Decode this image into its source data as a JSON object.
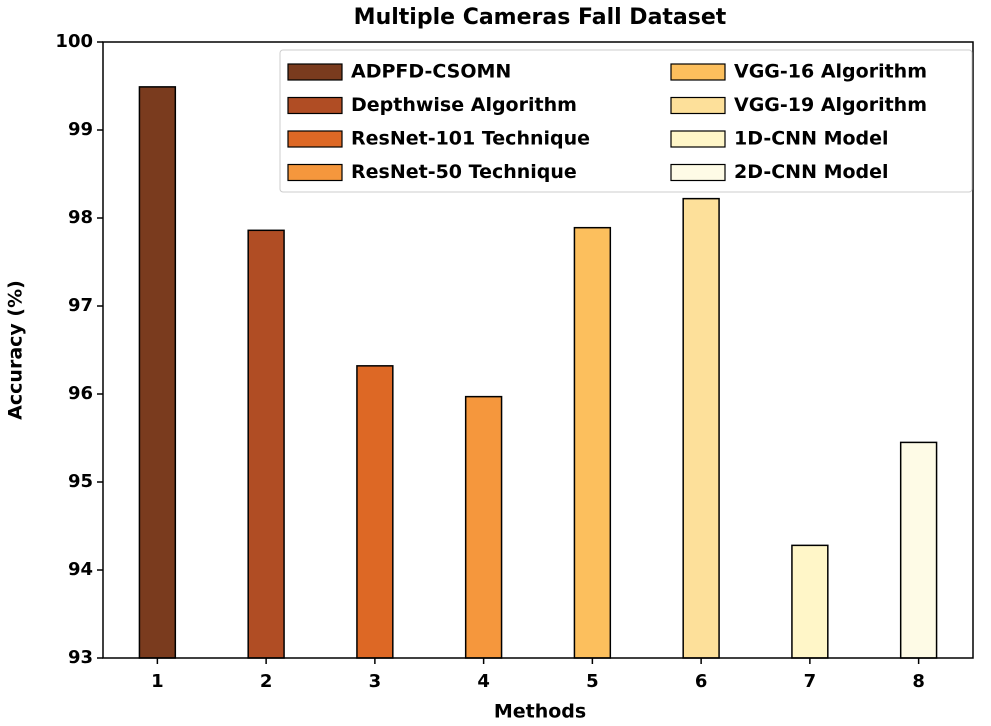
{
  "chart_data": {
    "type": "bar",
    "title": "Multiple Cameras Fall Dataset",
    "x_label": "Methods",
    "y_label": "Accuracy (%)",
    "categories": [
      "1",
      "2",
      "3",
      "4",
      "5",
      "6",
      "7",
      "8"
    ],
    "values": [
      99.49,
      97.86,
      96.32,
      95.97,
      97.89,
      98.22,
      94.28,
      95.45
    ],
    "colors": [
      "#7a3b1e",
      "#b04d24",
      "#dd6825",
      "#f5973d",
      "#fcbf5d",
      "#fde09a",
      "#fff6c8",
      "#fefbe6"
    ],
    "legend_labels": [
      "ADPFD-CSOMN",
      "Depthwise Algorithm",
      "ResNet-101 Technique",
      "ResNet-50 Technique",
      "VGG-16 Algorithm",
      "VGG-19 Algorithm",
      "1D-CNN Model",
      "2D-CNN Model"
    ],
    "ylim": [
      93,
      100
    ],
    "yticks": [
      93,
      94,
      95,
      96,
      97,
      98,
      99,
      100
    ],
    "grid": false,
    "legend": "upper right"
  }
}
